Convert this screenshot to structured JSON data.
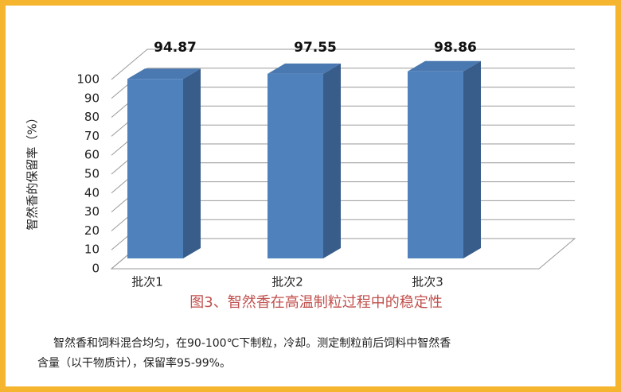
{
  "chart_data": {
    "type": "bar3d",
    "title": "图3、智然香在高温制粒过程中的稳定性",
    "y_label": "智然香的保留率（%）",
    "notes": [
      "智然香和饲料混合均匀，在90-100℃下制粒，冷却。测定制粒前后饲料中智然香",
      "含量（以干物质计），保留率95-99%。"
    ],
    "categories": [
      "批次1",
      "批次2",
      "批次3"
    ],
    "values": [
      94.87,
      97.55,
      98.86
    ],
    "color": "#4f81bd",
    "ylim": [
      0,
      100
    ],
    "yticks": [
      0,
      10,
      20,
      30,
      40,
      50,
      60,
      70,
      80,
      90,
      100
    ],
    "grid": true
  }
}
